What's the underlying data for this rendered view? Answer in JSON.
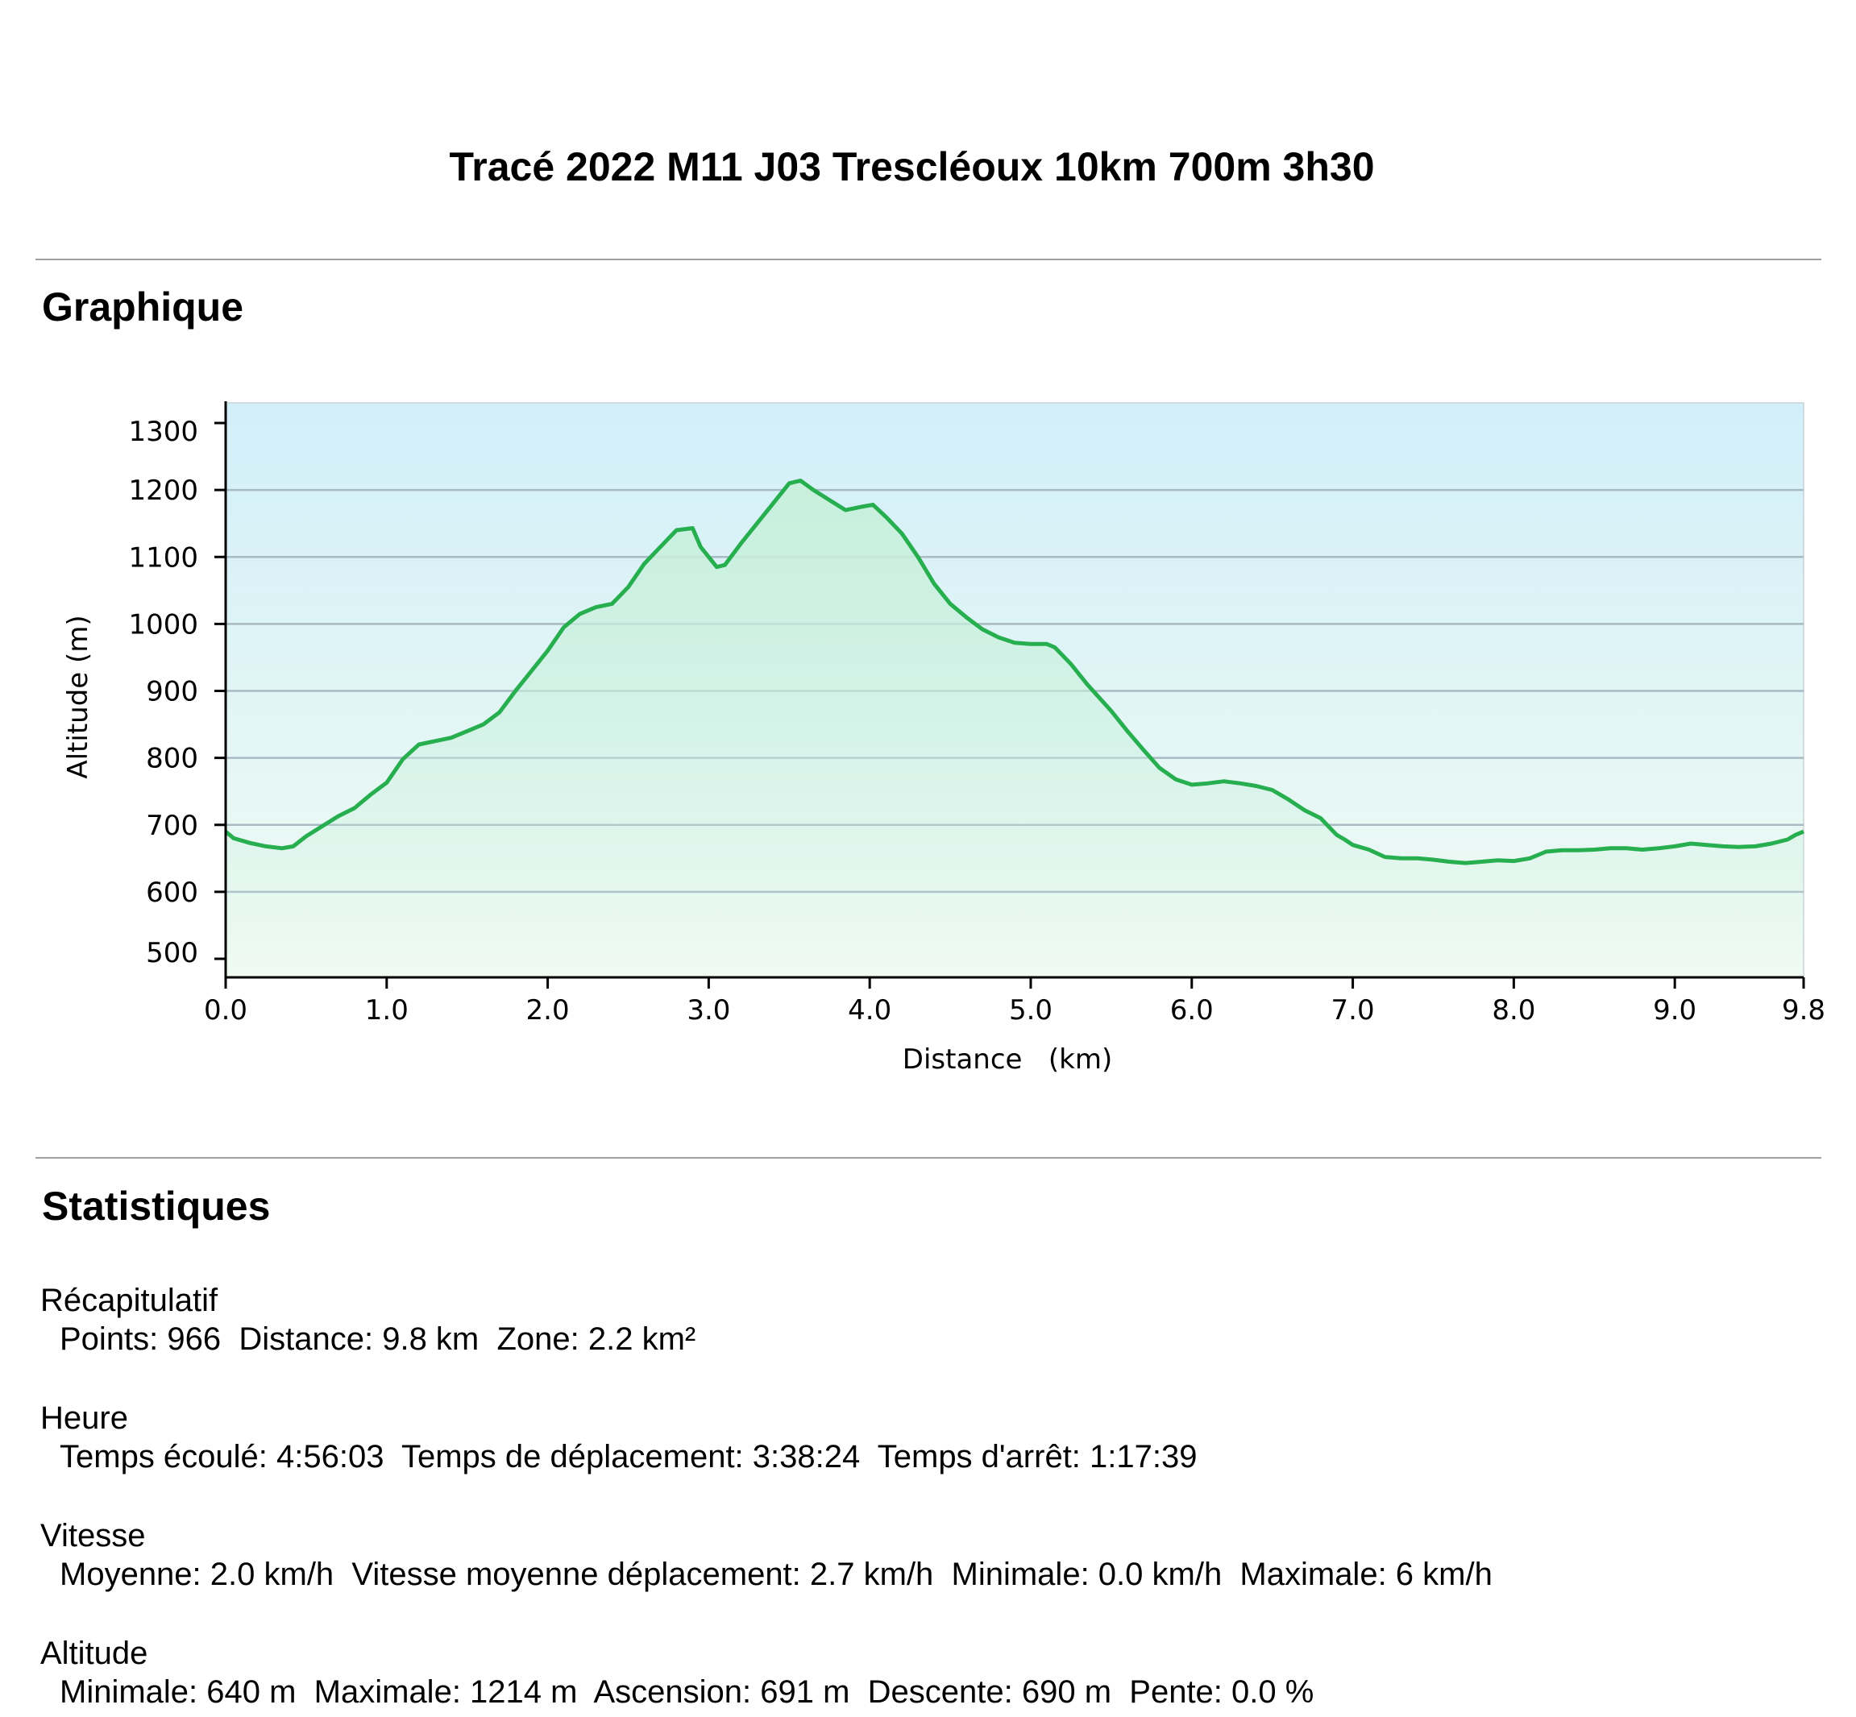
{
  "title": "Tracé 2022 M11 J03 Trescléoux 10km 700m 3h30",
  "sections": {
    "graph_title": "Graphique",
    "stats_title": "Statistiques"
  },
  "colors": {
    "line": "#27ae4f",
    "bg_top": "#d2eff9",
    "bg_bottom": "#f0fbf2",
    "fill_top": "#c8f0dc",
    "grid": "#a9bac3"
  },
  "chart_data": {
    "type": "area",
    "title": "",
    "xlabel": "Distance   (km)",
    "ylabel": "Altitude (m)",
    "xlim": [
      0,
      9.8
    ],
    "ylim": [
      500,
      1300
    ],
    "x_ticks": [
      "0.0",
      "1.0",
      "2.0",
      "3.0",
      "4.0",
      "5.0",
      "6.0",
      "7.0",
      "8.0",
      "9.0",
      "9.8"
    ],
    "y_ticks": [
      "500",
      "600",
      "700",
      "800",
      "900",
      "1000",
      "1100",
      "1200",
      "1300"
    ],
    "grid": true,
    "series": [
      {
        "x": [
          0.0,
          0.05,
          0.15,
          0.25,
          0.35,
          0.42,
          0.5,
          0.6,
          0.7,
          0.8,
          0.9,
          1.0,
          1.1,
          1.2,
          1.3,
          1.4,
          1.5,
          1.6,
          1.7,
          1.8,
          1.9,
          2.0,
          2.1,
          2.2,
          2.3,
          2.4,
          2.5,
          2.6,
          2.7,
          2.8,
          2.9,
          2.95,
          3.0,
          3.05,
          3.1,
          3.2,
          3.3,
          3.4,
          3.5,
          3.57,
          3.65,
          3.75,
          3.85,
          3.95,
          4.02,
          4.1,
          4.2,
          4.3,
          4.4,
          4.5,
          4.6,
          4.7,
          4.8,
          4.9,
          5.0,
          5.1,
          5.15,
          5.25,
          5.35,
          5.5,
          5.6,
          5.7,
          5.8,
          5.9,
          6.0,
          6.1,
          6.2,
          6.3,
          6.4,
          6.5,
          6.6,
          6.7,
          6.8,
          6.9,
          6.95,
          7.0,
          7.1,
          7.2,
          7.3,
          7.4,
          7.5,
          7.6,
          7.7,
          7.8,
          7.9,
          8.0,
          8.1,
          8.2,
          8.3,
          8.4,
          8.5,
          8.6,
          8.7,
          8.8,
          8.9,
          9.0,
          9.1,
          9.2,
          9.3,
          9.4,
          9.5,
          9.6,
          9.7,
          9.75,
          9.8
        ],
        "values": [
          690,
          680,
          673,
          668,
          665,
          668,
          683,
          698,
          713,
          725,
          745,
          763,
          798,
          820,
          825,
          830,
          840,
          850,
          868,
          900,
          930,
          960,
          995,
          1015,
          1025,
          1030,
          1055,
          1090,
          1115,
          1140,
          1143,
          1115,
          1100,
          1085,
          1088,
          1120,
          1150,
          1180,
          1210,
          1214,
          1200,
          1185,
          1170,
          1175,
          1178,
          1160,
          1135,
          1100,
          1060,
          1030,
          1010,
          992,
          980,
          972,
          970,
          970,
          965,
          940,
          910,
          870,
          840,
          812,
          785,
          768,
          760,
          762,
          765,
          762,
          758,
          752,
          738,
          722,
          710,
          685,
          678,
          670,
          663,
          652,
          650,
          650,
          648,
          645,
          643,
          645,
          647,
          646,
          650,
          660,
          662,
          662,
          663,
          665,
          665,
          663,
          665,
          668,
          672,
          670,
          668,
          667,
          668,
          672,
          678,
          685,
          690
        ]
      }
    ]
  },
  "stats": {
    "recap": {
      "head": "Récapitulatif",
      "line": "Points: 966  Distance: 9.8 km  Zone: 2.2 km²"
    },
    "time": {
      "head": "Heure",
      "line": "Temps écoulé: 4:56:03  Temps de déplacement: 3:38:24  Temps d'arrêt: 1:17:39"
    },
    "speed": {
      "head": "Vitesse",
      "line": "Moyenne: 2.0 km/h  Vitesse moyenne déplacement: 2.7 km/h  Minimale: 0.0 km/h  Maximale: 6 km/h"
    },
    "altitude": {
      "head": "Altitude",
      "line": "Minimale: 640 m  Maximale: 1214 m  Ascension: 691 m  Descente: 690 m  Pente: 0.0 %"
    }
  }
}
